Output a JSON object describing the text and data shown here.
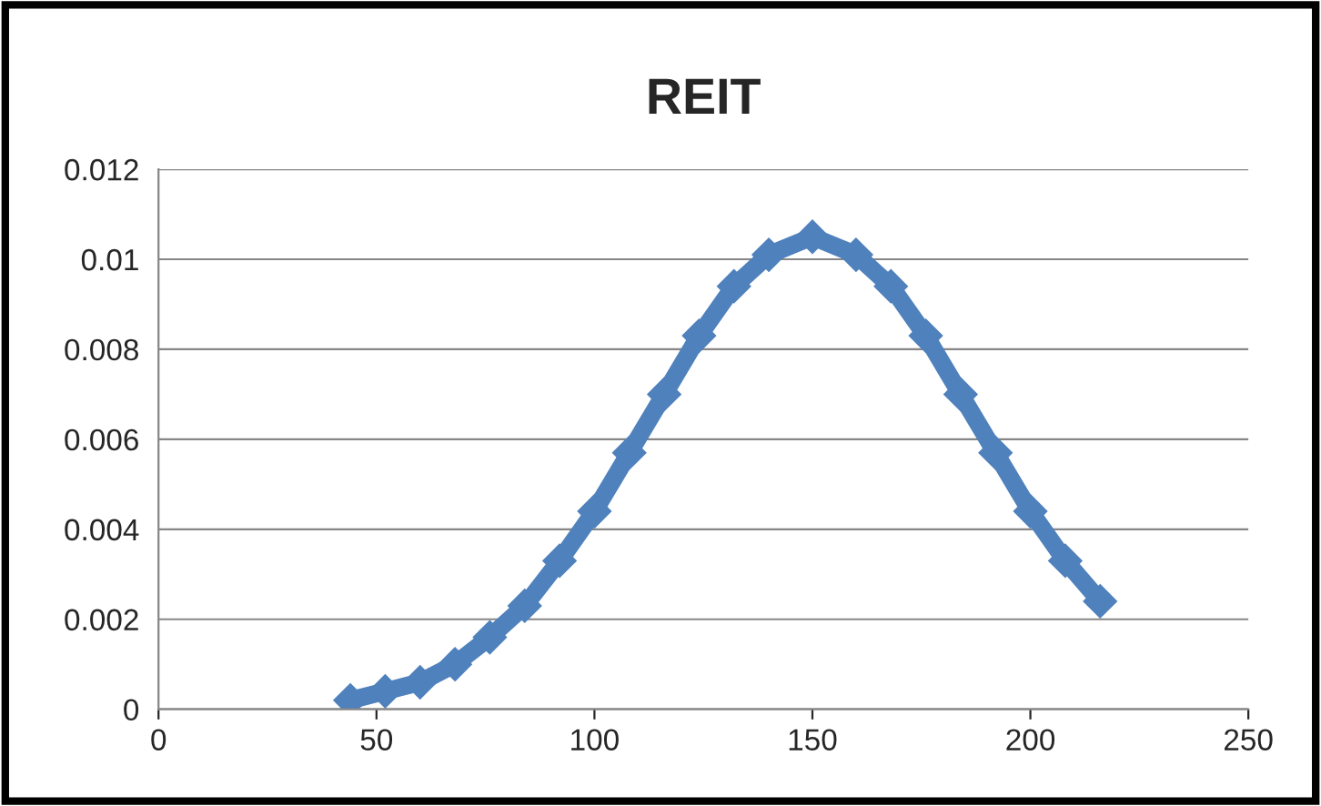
{
  "chart_data": {
    "type": "line",
    "title": "REIT",
    "x": [
      44,
      52,
      60,
      68,
      76,
      84,
      92,
      100,
      108,
      116,
      124,
      132,
      140,
      150,
      160,
      168,
      176,
      184,
      192,
      200,
      208,
      216
    ],
    "series": [
      {
        "color": "#4f81bd",
        "values": [
          0.0002,
          0.0004,
          0.0006,
          0.001,
          0.0016,
          0.0023,
          0.0033,
          0.0044,
          0.0057,
          0.007,
          0.0083,
          0.0094,
          0.0101,
          0.0105,
          0.0101,
          0.0094,
          0.0083,
          0.007,
          0.0057,
          0.0044,
          0.0033,
          0.0024
        ]
      }
    ],
    "xlim": [
      0,
      250
    ],
    "xticks": [
      0,
      50,
      100,
      150,
      200,
      250
    ],
    "ylim": [
      0,
      0.012
    ],
    "yticks": [
      0,
      0.002,
      0.004,
      0.006,
      0.008,
      0.01,
      0.012
    ],
    "grid": "y",
    "marker": "diamond",
    "line_style": "solid",
    "legend": false
  }
}
